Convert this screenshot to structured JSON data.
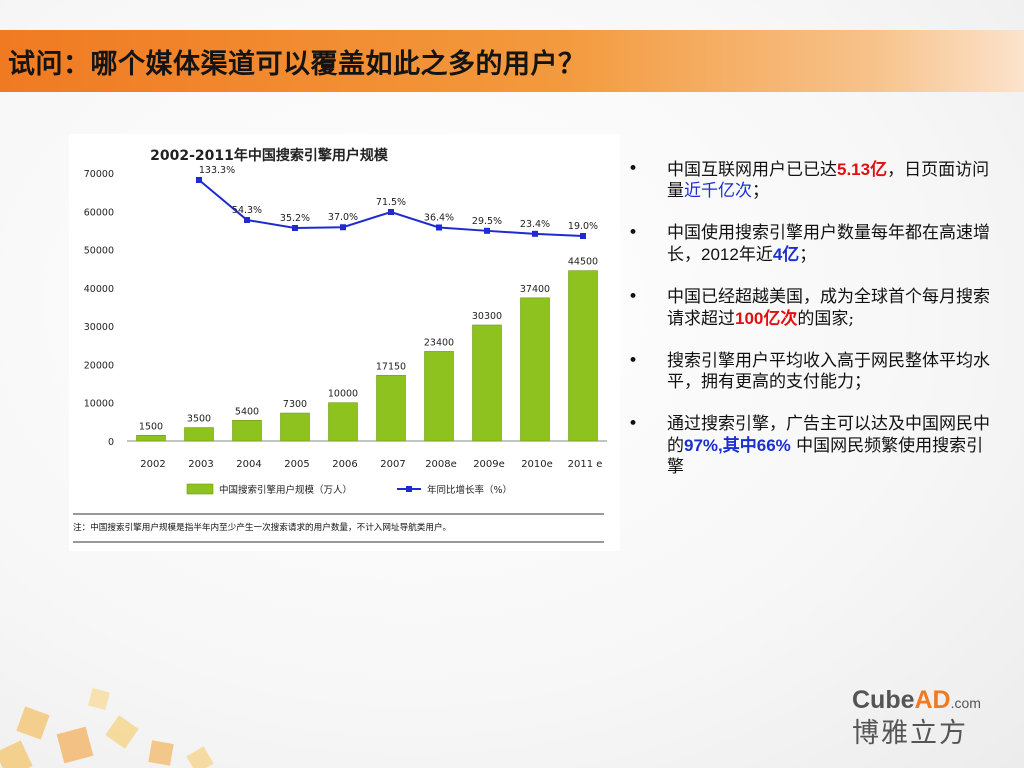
{
  "slide": {
    "title": "试问：哪个媒体渠道可以覆盖如此之多的用户？"
  },
  "chart_data": {
    "type": "bar",
    "title": "2002-2011年中国搜索引擎用户规模",
    "categories": [
      "2002",
      "2003",
      "2004",
      "2005",
      "2006",
      "2007",
      "2008e",
      "2009e",
      "2010e",
      "2011 e"
    ],
    "series": [
      {
        "name": "中国搜索引擎用户规模（万人）",
        "type": "bar",
        "color": "#8ec21f",
        "values": [
          1500,
          3500,
          5400,
          7300,
          10000,
          17150,
          23400,
          30300,
          37400,
          44500
        ],
        "labels": [
          "1500",
          "3500",
          "5400",
          "7300",
          "10000",
          "17150",
          "23400",
          "30300",
          "37400",
          "44500"
        ]
      },
      {
        "name": "年同比增长率（%）",
        "type": "line",
        "color": "#1f2ad1",
        "values": [
          null,
          133.3,
          54.3,
          35.2,
          37.0,
          71.5,
          36.4,
          29.5,
          23.4,
          19.0
        ],
        "labels": [
          "",
          "133.3%",
          "54.3%",
          "35.2%",
          "37.0%",
          "71.5%",
          "36.4%",
          "29.5%",
          "23.4%",
          "19.0%"
        ]
      }
    ],
    "ylim": [
      0,
      70000
    ],
    "yticks": [
      "0",
      "10000",
      "20000",
      "30000",
      "40000",
      "50000",
      "60000",
      "70000"
    ],
    "grid": false,
    "legend": "bottom",
    "note": "注：中国搜索引擎用户规模是指半年内至少产生一次搜索请求的用户数量，不计入网址导航类用户。"
  },
  "bullets": [
    {
      "parts": [
        {
          "text": "中国互联网用户已已达",
          "style": "normal"
        },
        {
          "text": "5.13亿",
          "style": "red"
        },
        {
          "text": "，日页面访问量",
          "style": "normal"
        },
        {
          "text": "近千亿次",
          "style": "blue"
        },
        {
          "text": "；",
          "style": "normal"
        }
      ]
    },
    {
      "parts": [
        {
          "text": "中国使用搜索引擎用户数量每年都在高速增长，",
          "style": "normal"
        },
        {
          "text": "2012",
          "style": "arial"
        },
        {
          "text": "年近",
          "style": "normal"
        },
        {
          "text": "4亿",
          "style": "blue-b"
        },
        {
          "text": "；",
          "style": "normal"
        }
      ]
    },
    {
      "parts": [
        {
          "text": "中国已经超越美国，成为全球首个每月搜索请求超过",
          "style": "normal"
        },
        {
          "text": "100亿次",
          "style": "red"
        },
        {
          "text": "的国家;",
          "style": "normal"
        }
      ]
    },
    {
      "parts": [
        {
          "text": "搜索引擎用户平均收入高于网民整体平均水平，拥有更高的支付能力；",
          "style": "normal"
        }
      ]
    },
    {
      "parts": [
        {
          "text": "通过搜索引擎，广告主可以达及中国网民中的",
          "style": "normal"
        },
        {
          "text": "97%,其中66%",
          "style": "blue-b"
        },
        {
          "text": " 中国网民频繁使用搜索引擎",
          "style": "normal"
        }
      ]
    }
  ],
  "bullet_marker": "•",
  "logo": {
    "cube": "Cube",
    "ad": "AD",
    "com": ".com",
    "cn": "博雅立方"
  },
  "colors": {
    "accent": "#f07a22",
    "bar": "#8ec21f",
    "line": "#1f2ad1",
    "red": "#e01010",
    "blue": "#1a2fd0"
  }
}
